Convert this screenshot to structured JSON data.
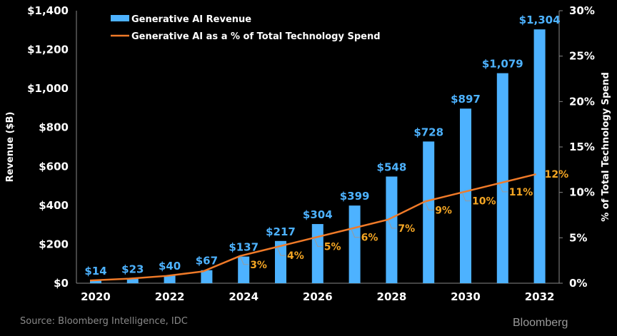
{
  "chart_data": {
    "type": "bar",
    "categories": [
      "2020",
      "2021",
      "2022",
      "2023",
      "2024",
      "2025",
      "2026",
      "2027",
      "2028",
      "2029",
      "2030",
      "2031",
      "2032"
    ],
    "x_tick_labels": [
      "2020",
      "2022",
      "2024",
      "2026",
      "2028",
      "2030",
      "2032"
    ],
    "series": [
      {
        "name": "Generative AI Revenue",
        "type": "bar",
        "axis": "left",
        "color": "#4db2ff",
        "values": [
          14,
          23,
          40,
          67,
          137,
          217,
          304,
          399,
          548,
          728,
          897,
          1079,
          1304
        ],
        "labels": [
          "$14",
          "$23",
          "$40",
          "$67",
          "$137",
          "$217",
          "$304",
          "$399",
          "$548",
          "$728",
          "$897",
          "$1,079",
          "$1,304"
        ]
      },
      {
        "name": "Generative AI as a % of Total Technology Spend",
        "type": "line",
        "axis": "right",
        "color": "#f07a28",
        "values": [
          0.3,
          0.5,
          0.8,
          1.3,
          3,
          4,
          5,
          6,
          7,
          9,
          10,
          11,
          12
        ],
        "labels": [
          "",
          "",
          "",
          "",
          "3%",
          "4%",
          "5%",
          "6%",
          "7%",
          "9%",
          "10%",
          "11%",
          "12%"
        ]
      }
    ],
    "ylabel": "Revenue ($B)",
    "ylim": [
      0,
      1400
    ],
    "y_ticks": [
      "$0",
      "$200",
      "$400",
      "$600",
      "$800",
      "$1,000",
      "$1,200",
      "$1,400"
    ],
    "y2label": "% of Total Technology Spend",
    "y2lim": [
      0,
      30
    ],
    "y2_ticks": [
      "0%",
      "5%",
      "10%",
      "15%",
      "20%",
      "25%",
      "30%"
    ],
    "grid": false,
    "legend": "top-left"
  },
  "footer": {
    "source": "Source: Bloomberg Intelligence, IDC",
    "brand": "Bloomberg"
  }
}
